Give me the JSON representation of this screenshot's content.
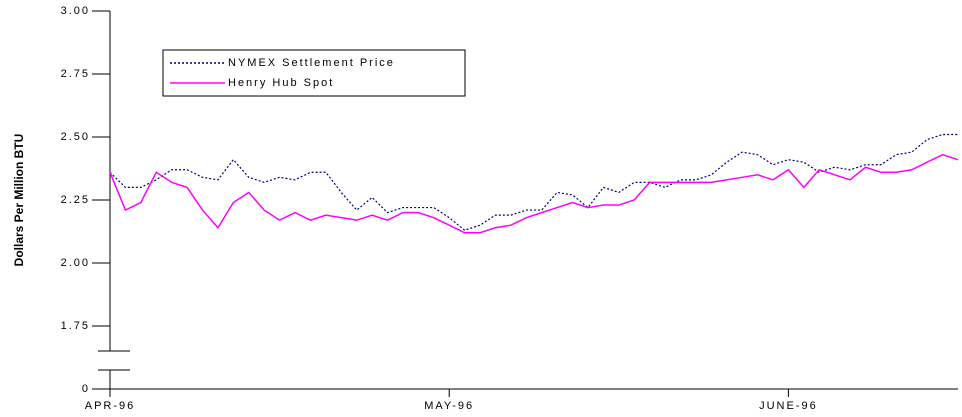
{
  "chart_data": {
    "type": "line",
    "y_label": "Dollars Per Million BTU",
    "x": [
      0,
      1,
      2,
      3,
      4,
      5,
      6,
      7,
      8,
      9,
      10,
      11,
      12,
      13,
      14,
      15,
      16,
      17,
      18,
      19,
      20,
      21,
      22,
      23,
      24,
      25,
      26,
      27,
      28,
      29,
      30,
      31,
      32,
      33,
      34,
      35,
      36,
      37,
      38,
      39,
      40,
      41,
      42,
      43,
      44,
      45,
      46,
      47,
      48,
      49,
      50,
      51,
      52,
      53,
      54,
      55
    ],
    "xlim": [
      0,
      55
    ],
    "xticks": [
      {
        "value": 0,
        "label": "APR-96"
      },
      {
        "value": 22,
        "label": "MAY-96"
      },
      {
        "value": 44,
        "label": "JUNE-96"
      }
    ],
    "ylim": [
      1.5,
      3.0
    ],
    "yticks": [
      {
        "value": 1.75,
        "label": "1.75"
      },
      {
        "value": 2.0,
        "label": "2.00"
      },
      {
        "value": 2.25,
        "label": "2.25"
      },
      {
        "value": 2.5,
        "label": "2.50"
      },
      {
        "value": 2.75,
        "label": "2.75"
      },
      {
        "value": 3.0,
        "label": "3.00"
      }
    ],
    "y_break_tick": 0,
    "legend_position": "upper-left",
    "series": [
      {
        "name": "NYMEX Settlement Price",
        "color": "#000080",
        "dashed": true,
        "values": [
          2.36,
          2.3,
          2.3,
          2.33,
          2.37,
          2.37,
          2.34,
          2.33,
          2.41,
          2.34,
          2.32,
          2.34,
          2.33,
          2.36,
          2.36,
          2.28,
          2.21,
          2.26,
          2.2,
          2.22,
          2.22,
          2.22,
          2.18,
          2.13,
          2.15,
          2.19,
          2.19,
          2.21,
          2.21,
          2.28,
          2.27,
          2.22,
          2.3,
          2.28,
          2.32,
          2.32,
          2.3,
          2.33,
          2.33,
          2.35,
          2.4,
          2.44,
          2.43,
          2.39,
          2.41,
          2.4,
          2.36,
          2.38,
          2.37,
          2.39,
          2.39,
          2.43,
          2.44,
          2.49,
          2.51,
          2.51
        ]
      },
      {
        "name": "Henry Hub Spot",
        "color": "#ff00ff",
        "dashed": false,
        "values": [
          2.36,
          2.21,
          2.24,
          2.36,
          2.32,
          2.3,
          2.21,
          2.14,
          2.24,
          2.28,
          2.21,
          2.17,
          2.2,
          2.17,
          2.19,
          2.18,
          2.17,
          2.19,
          2.17,
          2.2,
          2.2,
          2.18,
          2.15,
          2.12,
          2.12,
          2.14,
          2.15,
          2.18,
          2.2,
          2.22,
          2.24,
          2.22,
          2.23,
          2.23,
          2.25,
          2.32,
          2.32,
          2.32,
          2.32,
          2.32,
          2.33,
          2.34,
          2.35,
          2.33,
          2.37,
          2.3,
          2.37,
          2.35,
          2.33,
          2.38,
          2.36,
          2.36,
          2.37,
          2.4,
          2.43,
          2.41
        ]
      }
    ]
  }
}
